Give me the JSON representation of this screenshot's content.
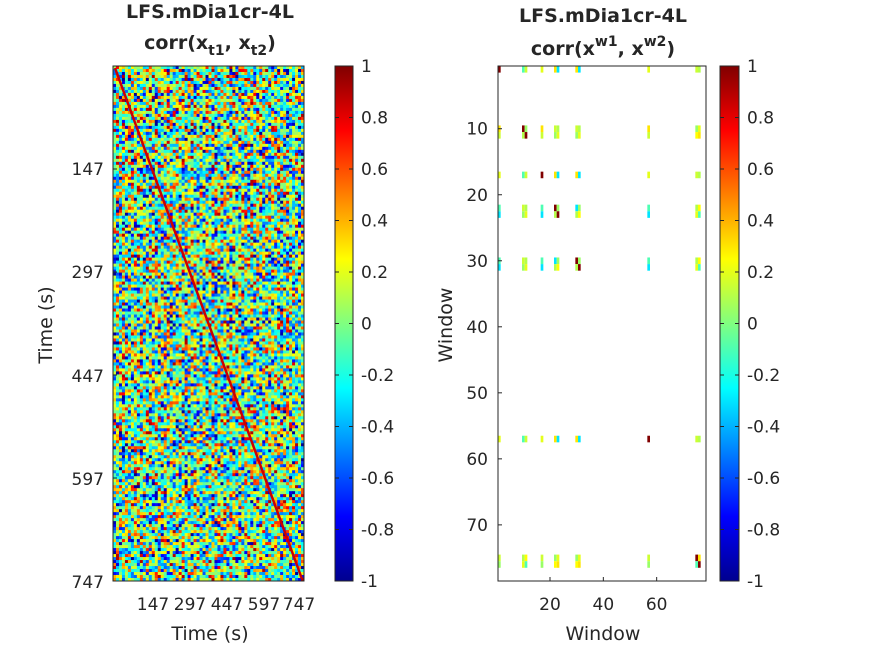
{
  "chart_data": [
    {
      "type": "heatmap",
      "title_line1": "LFS.mDia1cr-4L",
      "title_line2": {
        "prefix": "corr(x",
        "sub1": "t1",
        "mid": ", x",
        "sub2": "t2",
        "suffix": ")"
      },
      "xlabel": "Time (s)",
      "ylabel": "Time (s)",
      "xticks": [
        "147",
        "297",
        "447",
        "597",
        "747"
      ],
      "yticks": [
        "147",
        "297",
        "447",
        "597",
        "747"
      ],
      "xlim": [
        1,
        747
      ],
      "ylim": [
        1,
        747
      ],
      "description_values": {
        "diagonal_corr": 1,
        "offdiag_corr_range": [
          -1,
          1
        ]
      },
      "colorbar": {
        "ticks": [
          "1",
          "0.8",
          "0.6",
          "0.4",
          "0.2",
          "0",
          "-0.2",
          "-0.4",
          "-0.6",
          "-0.8",
          "-1"
        ],
        "range": [
          -1,
          1
        ],
        "colormap": "jet"
      }
    },
    {
      "type": "heatmap",
      "title_line1": "LFS.mDia1cr-4L",
      "title_line2": {
        "prefix": "corr(x",
        "sup1": "w1",
        "mid": ", x",
        "sup2": "w2",
        "suffix": ")"
      },
      "xlabel": "Window",
      "ylabel": "Window",
      "xticks": [
        "20",
        "40",
        "60"
      ],
      "yticks": [
        "10",
        "20",
        "30",
        "40",
        "50",
        "60",
        "70"
      ],
      "xlim": [
        0.5,
        78.5
      ],
      "ylim": [
        0.5,
        78.5
      ],
      "active_windows": [
        1,
        10,
        11,
        17,
        22,
        23,
        30,
        31,
        57,
        75,
        76
      ],
      "colorbar": {
        "ticks": [
          "1",
          "0.8",
          "0.6",
          "0.4",
          "0.2",
          "0",
          "-0.2",
          "-0.4",
          "-0.6",
          "-0.8",
          "-1"
        ],
        "range": [
          -1,
          1
        ],
        "colormap": "jet"
      }
    }
  ]
}
